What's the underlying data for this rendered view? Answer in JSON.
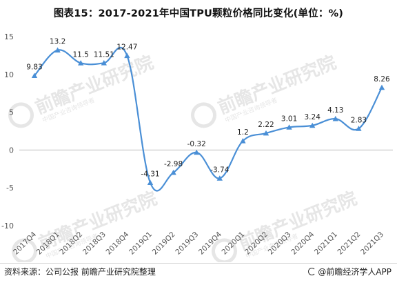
{
  "title": "图表15：2017-2021年中国TPU颗粒价格同比变化(单位：%)",
  "footer": {
    "source": "资料来源：公司公报 前瞻产业研究院整理",
    "brand": "@前瞻经济学人APP"
  },
  "watermark": {
    "text": "前瞻产业研究院",
    "subtext": "中国产业咨询领导者"
  },
  "colors": {
    "line": "#4a8fd6",
    "axis_text": "#555555",
    "label_text": "#222222",
    "watermark": "#e6e6e6"
  },
  "chart_data": {
    "type": "line",
    "title": "图表15：2017-2021年中国TPU颗粒价格同比变化(单位：%)",
    "categories": [
      "2017Q4",
      "2018Q1",
      "2018Q2",
      "2018Q3",
      "2018Q4",
      "2019Q1",
      "2019Q2",
      "2019Q3",
      "2019Q4",
      "2020Q1",
      "2020Q2",
      "2020Q3",
      "2020Q4",
      "2021Q1",
      "2021Q2",
      "2021Q3"
    ],
    "values": [
      9.83,
      13.2,
      11.5,
      11.51,
      12.47,
      -4.31,
      -2.98,
      -0.32,
      -3.74,
      1.2,
      2.22,
      3.01,
      3.24,
      4.13,
      2.83,
      8.26
    ],
    "data_labels": [
      "9.83",
      "13.2",
      "11.5",
      "11.51",
      "12.47",
      "-4.31",
      "-2.98",
      "-0.32",
      "-3.74",
      "1.2",
      "2.22",
      "3.01",
      "3.24",
      "4.13",
      "2.83",
      "8.26"
    ],
    "ylim": [
      -10,
      15
    ],
    "yticks": [
      -10,
      -5,
      0,
      5,
      10,
      15
    ],
    "ytick_labels": [
      "-10",
      "-5",
      "0",
      "5",
      "10",
      "15"
    ],
    "smooth": true,
    "marker": "triangle",
    "grid": false,
    "legend": "none"
  }
}
